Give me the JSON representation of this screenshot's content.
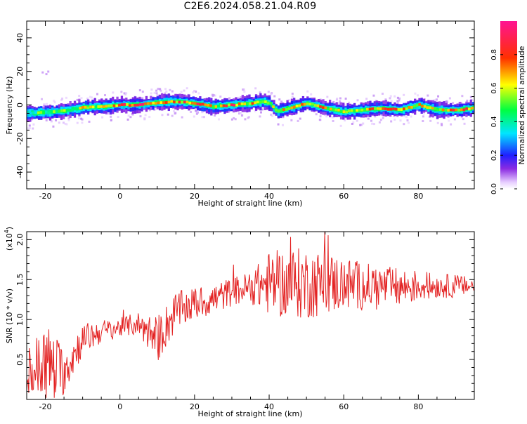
{
  "title": "C2E6.2024.058.21.04.R09",
  "chart_data": [
    {
      "type": "heatmap",
      "name": "spectrogram",
      "xlabel": "Height of straight line (km)",
      "ylabel": "Frequency (Hz)",
      "xlim": [
        -25,
        95
      ],
      "ylim": [
        -50,
        50
      ],
      "xticks": [
        -20,
        0,
        20,
        40,
        60,
        80
      ],
      "yticks": [
        -40,
        -20,
        0,
        20,
        40
      ],
      "colorbar": {
        "label": "Normalized spectral amplitude",
        "range": [
          0.0,
          1.0
        ],
        "ticks": [
          "0.0",
          "0.2",
          "0.4",
          "0.6",
          "0.8"
        ],
        "tick_values": [
          0.0,
          0.2,
          0.4,
          0.6,
          0.8
        ]
      },
      "ridge": {
        "description_points_x": [
          -25,
          -20,
          -15,
          -10,
          -5,
          0,
          5,
          10,
          15,
          20,
          25,
          30,
          35,
          38,
          40,
          42,
          45,
          50,
          55,
          60,
          65,
          70,
          75,
          80,
          85,
          90,
          95
        ],
        "center_freq_hz": [
          -5,
          -4.5,
          -3.5,
          -1.5,
          -1,
          0,
          0,
          1.5,
          2,
          1,
          -1,
          0,
          1,
          2,
          1,
          -4,
          -2,
          1,
          -2,
          -4,
          -3,
          -2,
          -3,
          0,
          -3,
          -3,
          -2
        ],
        "peak_amplitude": [
          0.5,
          0.6,
          0.6,
          0.7,
          0.7,
          0.95,
          0.95,
          0.8,
          0.9,
          0.9,
          0.7,
          0.95,
          0.75,
          0.85,
          0.8,
          0.6,
          0.8,
          0.85,
          0.75,
          0.7,
          0.75,
          0.85,
          0.9,
          0.8,
          0.8,
          0.85,
          0.8
        ]
      }
    },
    {
      "type": "line",
      "name": "snr",
      "xlabel": "Height of straight line (km)",
      "ylabel": "SNR (10 * v/v)",
      "scale_label": "(x10",
      "scale_exponent": "4",
      "scale_close": ")",
      "xlim": [
        -25,
        95
      ],
      "ylim": [
        0,
        2.1
      ],
      "xticks": [
        -20,
        0,
        20,
        40,
        60,
        80
      ],
      "yticks": [
        0.5,
        1.0,
        1.5,
        2.0
      ],
      "ytick_labels": [
        "0.5",
        "1.0",
        "1.5",
        "2.0"
      ],
      "color": "#e32222",
      "series": [
        {
          "name": "SNR",
          "x": [
            -25,
            -20,
            -15,
            -10,
            -5,
            0,
            5,
            10,
            15,
            20,
            25,
            30,
            35,
            40,
            45,
            50,
            55,
            60,
            65,
            70,
            75,
            80,
            85,
            90,
            95
          ],
          "mean": [
            0.3,
            0.45,
            0.35,
            0.75,
            0.85,
            0.9,
            0.95,
            0.75,
            1.1,
            1.2,
            1.25,
            1.35,
            1.4,
            1.45,
            1.45,
            1.45,
            1.45,
            1.45,
            1.42,
            1.42,
            1.4,
            1.42,
            1.42,
            1.42,
            1.42
          ],
          "spread": [
            0.3,
            0.55,
            0.3,
            0.2,
            0.15,
            0.12,
            0.15,
            0.3,
            0.25,
            0.2,
            0.2,
            0.18,
            0.2,
            0.4,
            0.45,
            0.45,
            0.4,
            0.35,
            0.3,
            0.25,
            0.25,
            0.2,
            0.15,
            0.15,
            0.1
          ]
        }
      ]
    }
  ]
}
